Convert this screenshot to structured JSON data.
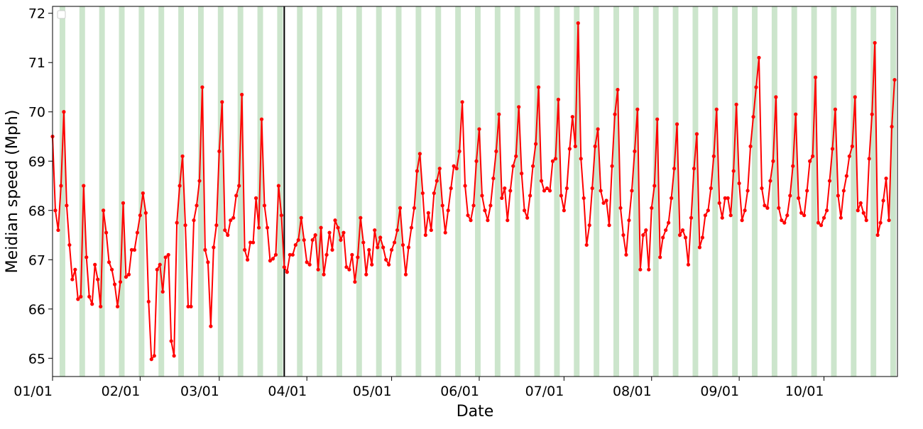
{
  "chart_data": {
    "type": "line",
    "x_label": "Date",
    "y_label": "Meidian speed (Mph)",
    "x": [
      "01/01",
      "01/02",
      "01/03",
      "01/04",
      "01/05",
      "01/06",
      "01/07",
      "01/08",
      "01/09",
      "01/10",
      "01/11",
      "01/12",
      "01/13",
      "01/14",
      "01/15",
      "01/16",
      "01/17",
      "01/18",
      "01/19",
      "01/20",
      "01/21",
      "01/22",
      "01/23",
      "01/24",
      "01/25",
      "01/26",
      "01/27",
      "01/28",
      "01/29",
      "01/30",
      "01/31",
      "02/01",
      "02/02",
      "02/03",
      "02/04",
      "02/05",
      "02/06",
      "02/07",
      "02/08",
      "02/09",
      "02/10",
      "02/11",
      "02/12",
      "02/13",
      "02/14",
      "02/15",
      "02/16",
      "02/17",
      "02/18",
      "02/19",
      "02/20",
      "02/21",
      "02/22",
      "02/23",
      "02/24",
      "02/25",
      "02/26",
      "02/27",
      "02/28",
      "03/01",
      "03/02",
      "03/03",
      "03/04",
      "03/05",
      "03/06",
      "03/07",
      "03/08",
      "03/09",
      "03/10",
      "03/11",
      "03/12",
      "03/13",
      "03/14",
      "03/15",
      "03/16",
      "03/17",
      "03/18",
      "03/19",
      "03/20",
      "03/21",
      "03/22",
      "03/23",
      "03/24",
      "03/25",
      "03/26",
      "03/27",
      "03/28",
      "03/29",
      "03/30",
      "03/31",
      "04/01",
      "04/02",
      "04/03",
      "04/04",
      "04/05",
      "04/06",
      "04/07",
      "04/08",
      "04/09",
      "04/10",
      "04/11",
      "04/12",
      "04/13",
      "04/14",
      "04/15",
      "04/16",
      "04/17",
      "04/18",
      "04/19",
      "04/20",
      "04/21",
      "04/22",
      "04/23",
      "04/24",
      "04/25",
      "04/26",
      "04/27",
      "04/28",
      "04/29",
      "04/30",
      "05/01",
      "05/02",
      "05/03",
      "05/04",
      "05/05",
      "05/06",
      "05/07",
      "05/08",
      "05/09",
      "05/10",
      "05/11",
      "05/12",
      "05/13",
      "05/14",
      "05/15",
      "05/16",
      "05/17",
      "05/18",
      "05/19",
      "05/20",
      "05/21",
      "05/22",
      "05/23",
      "05/24",
      "05/25",
      "05/26",
      "05/27",
      "05/28",
      "05/29",
      "05/30",
      "05/31",
      "06/01",
      "06/02",
      "06/03",
      "06/04",
      "06/05",
      "06/06",
      "06/07",
      "06/08",
      "06/09",
      "06/10",
      "06/11",
      "06/12",
      "06/13",
      "06/14",
      "06/15",
      "06/16",
      "06/17",
      "06/18",
      "06/19",
      "06/20",
      "06/21",
      "06/22",
      "06/23",
      "06/24",
      "06/25",
      "06/26",
      "06/27",
      "06/28",
      "06/29",
      "06/30",
      "07/01",
      "07/02",
      "07/03",
      "07/04",
      "07/05",
      "07/06",
      "07/07",
      "07/08",
      "07/09",
      "07/10",
      "07/11",
      "07/12",
      "07/13",
      "07/14",
      "07/15",
      "07/16",
      "07/17",
      "07/18",
      "07/19",
      "07/20",
      "07/21",
      "07/22",
      "07/23",
      "07/24",
      "07/25",
      "07/26",
      "07/27",
      "07/28",
      "07/29",
      "07/30",
      "07/31",
      "08/01",
      "08/02",
      "08/03",
      "08/04",
      "08/05",
      "08/06",
      "08/07",
      "08/08",
      "08/09",
      "08/10",
      "08/11",
      "08/12",
      "08/13",
      "08/14",
      "08/15",
      "08/16",
      "08/17",
      "08/18",
      "08/19",
      "08/20",
      "08/21",
      "08/22",
      "08/23",
      "08/24",
      "08/25",
      "08/26",
      "08/27",
      "08/28",
      "08/29",
      "08/30",
      "08/31",
      "09/01",
      "09/02",
      "09/03",
      "09/04",
      "09/05",
      "09/06",
      "09/07",
      "09/08",
      "09/09",
      "09/10",
      "09/11",
      "09/12",
      "09/13",
      "09/14",
      "09/15",
      "09/16",
      "09/17",
      "09/18",
      "09/19",
      "09/20",
      "09/21",
      "09/22",
      "09/23",
      "09/24",
      "09/25",
      "09/26",
      "09/27",
      "09/28",
      "09/29",
      "09/30",
      "10/01",
      "10/02",
      "10/03",
      "10/04",
      "10/05",
      "10/06",
      "10/07",
      "10/08",
      "10/09",
      "10/10",
      "10/11",
      "10/12",
      "10/13",
      "10/14",
      "10/15",
      "10/16",
      "10/17",
      "10/18",
      "10/19",
      "10/20",
      "10/21",
      "10/22",
      "10/23",
      "10/24",
      "10/25",
      "10/26"
    ],
    "series": [
      {
        "color": "#ff0000",
        "values": [
          69.5,
          68.0,
          67.6,
          68.5,
          70.0,
          68.1,
          67.3,
          66.6,
          66.8,
          66.2,
          66.25,
          68.5,
          67.05,
          66.25,
          66.1,
          66.9,
          66.6,
          66.05,
          68.0,
          67.55,
          66.95,
          66.8,
          66.5,
          66.05,
          66.55,
          68.15,
          66.65,
          66.7,
          67.2,
          67.2,
          67.55,
          67.9,
          68.35,
          67.95,
          66.15,
          64.98,
          65.05,
          66.8,
          66.9,
          66.35,
          67.05,
          67.1,
          65.35,
          65.05,
          67.75,
          68.5,
          69.1,
          67.7,
          66.05,
          66.05,
          67.8,
          68.1,
          68.6,
          70.5,
          67.2,
          66.95,
          65.65,
          67.25,
          67.7,
          69.2,
          70.2,
          67.6,
          67.5,
          67.8,
          67.85,
          68.3,
          68.5,
          70.35,
          67.2,
          67.0,
          67.35,
          67.35,
          68.25,
          67.65,
          69.85,
          68.1,
          67.65,
          66.98,
          67.02,
          67.1,
          68.5,
          67.9,
          66.85,
          66.75,
          67.1,
          67.1,
          67.3,
          67.4,
          67.85,
          67.4,
          66.95,
          66.9,
          67.4,
          67.5,
          66.8,
          67.65,
          66.7,
          67.1,
          67.55,
          67.2,
          67.8,
          67.65,
          67.4,
          67.55,
          66.85,
          66.8,
          67.1,
          66.55,
          67.05,
          67.85,
          67.35,
          66.7,
          67.2,
          66.9,
          67.6,
          67.25,
          67.45,
          67.25,
          67.0,
          66.9,
          67.2,
          67.35,
          67.6,
          68.05,
          67.3,
          66.7,
          67.25,
          67.65,
          68.05,
          68.8,
          69.15,
          68.35,
          67.5,
          67.95,
          67.6,
          68.35,
          68.6,
          68.85,
          68.1,
          67.55,
          68.0,
          68.45,
          68.9,
          68.85,
          69.2,
          70.2,
          68.5,
          67.9,
          67.8,
          68.1,
          69.0,
          69.65,
          68.3,
          68.0,
          67.8,
          68.1,
          68.65,
          69.2,
          69.95,
          68.25,
          68.45,
          67.8,
          68.4,
          68.9,
          69.1,
          70.1,
          68.75,
          68.0,
          67.85,
          68.3,
          68.9,
          69.35,
          70.5,
          68.6,
          68.4,
          68.45,
          68.4,
          69.0,
          69.05,
          70.25,
          68.3,
          68.0,
          68.45,
          69.25,
          69.9,
          69.3,
          71.8,
          69.05,
          68.25,
          67.3,
          67.7,
          68.45,
          69.3,
          69.65,
          68.4,
          68.15,
          68.2,
          67.7,
          68.9,
          69.95,
          70.45,
          68.05,
          67.5,
          67.1,
          67.8,
          68.4,
          69.2,
          70.05,
          66.8,
          67.5,
          67.6,
          66.8,
          68.05,
          68.5,
          69.85,
          67.05,
          67.45,
          67.6,
          67.75,
          68.25,
          68.85,
          69.75,
          67.5,
          67.6,
          67.45,
          66.9,
          67.85,
          68.85,
          69.55,
          67.25,
          67.45,
          67.9,
          68.0,
          68.45,
          69.1,
          70.05,
          68.15,
          67.85,
          68.25,
          68.25,
          67.9,
          68.8,
          70.15,
          68.55,
          67.8,
          68.0,
          68.4,
          69.3,
          69.9,
          70.5,
          71.1,
          68.45,
          68.1,
          68.05,
          68.6,
          69.0,
          70.3,
          68.05,
          67.8,
          67.75,
          67.9,
          68.3,
          68.9,
          69.95,
          68.25,
          67.95,
          67.9,
          68.4,
          69.0,
          69.1,
          70.7,
          67.75,
          67.7,
          67.85,
          68.0,
          68.6,
          69.25,
          70.05,
          68.3,
          67.85,
          68.4,
          68.7,
          69.1,
          69.3,
          70.3,
          68.0,
          68.15,
          67.95,
          67.8,
          69.05,
          69.95,
          71.4,
          67.5,
          67.75,
          68.2,
          68.65,
          67.8,
          69.7,
          70.65
        ]
      }
    ],
    "xlim": [
      "01/01",
      "10/27"
    ],
    "xticks": [
      "01/01",
      "02/01",
      "03/01",
      "04/01",
      "05/01",
      "06/01",
      "07/01",
      "08/01",
      "09/01",
      "10/01"
    ],
    "ylim": [
      64.63,
      72.14
    ],
    "yticks": [
      65,
      66,
      67,
      68,
      69,
      70,
      71,
      72
    ],
    "weekend_shading": {
      "first": "01/04",
      "color": "#cce5cc"
    },
    "vline": {
      "x": "03/24",
      "color": "#000000"
    }
  }
}
